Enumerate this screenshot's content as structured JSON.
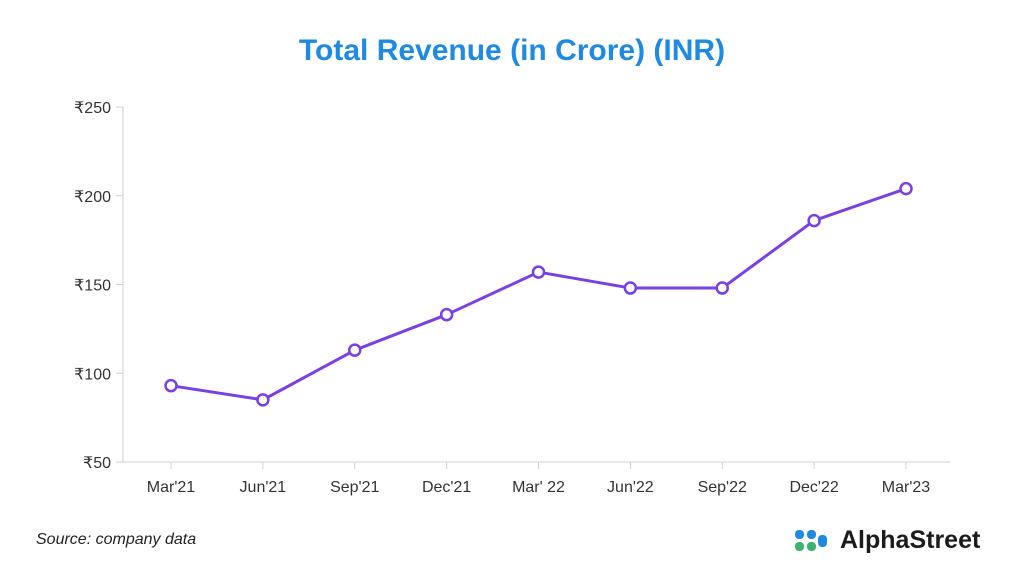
{
  "chart_data": {
    "type": "line",
    "title": "Total Revenue (in Crore) (INR)",
    "xlabel": "",
    "ylabel": "",
    "categories": [
      "Mar'21",
      "Jun'21",
      "Sep'21",
      "Dec'21",
      "Mar' 22",
      "Jun'22",
      "Sep'22",
      "Dec'22",
      "Mar'23"
    ],
    "series": [
      {
        "name": "Total Revenue",
        "values": [
          93,
          85,
          113,
          133,
          157,
          148,
          148,
          186,
          204
        ]
      }
    ],
    "ylim": [
      50,
      250
    ],
    "yticks": [
      50,
      100,
      150,
      200,
      250
    ],
    "ytick_labels": [
      "₹50",
      "₹100",
      "₹150",
      "₹200",
      "₹250"
    ],
    "line_color": "#7b3fe4",
    "title_color": "#1f8ae0",
    "grid": false
  },
  "footer": {
    "source": "Source: company data",
    "brand": "AlphaStreet"
  },
  "colors": {
    "logo_blue": "#1f8ae0",
    "logo_green": "#3cb371"
  }
}
